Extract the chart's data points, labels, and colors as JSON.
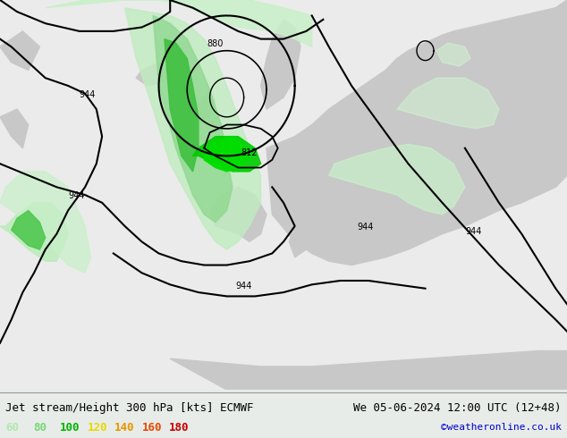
{
  "title_left": "Jet stream/Height 300 hPa [kts] ECMWF",
  "title_right": "We 05-06-2024 12:00 UTC (12+48)",
  "credit": "©weatheronline.co.uk",
  "legend_values": [
    "60",
    "80",
    "100",
    "120",
    "140",
    "160",
    "180"
  ],
  "legend_colors": [
    "#b0e8b0",
    "#78d878",
    "#00b400",
    "#e8d800",
    "#e89600",
    "#e84800",
    "#c80000"
  ],
  "bg_color": "#f0f0f0",
  "land_color": "#c8c8c8",
  "map_bg": "#ebebeb",
  "title_fontsize": 9,
  "legend_fontsize": 9,
  "credit_color": "#0000cc",
  "figsize": [
    6.34,
    4.9
  ],
  "dpi": 100,
  "bottom_bar_color": "#e8e8e8",
  "green_light": "#c8f0c8",
  "green_mid": "#90e090",
  "green_dark": "#00c000",
  "green_bright": "#00e000"
}
